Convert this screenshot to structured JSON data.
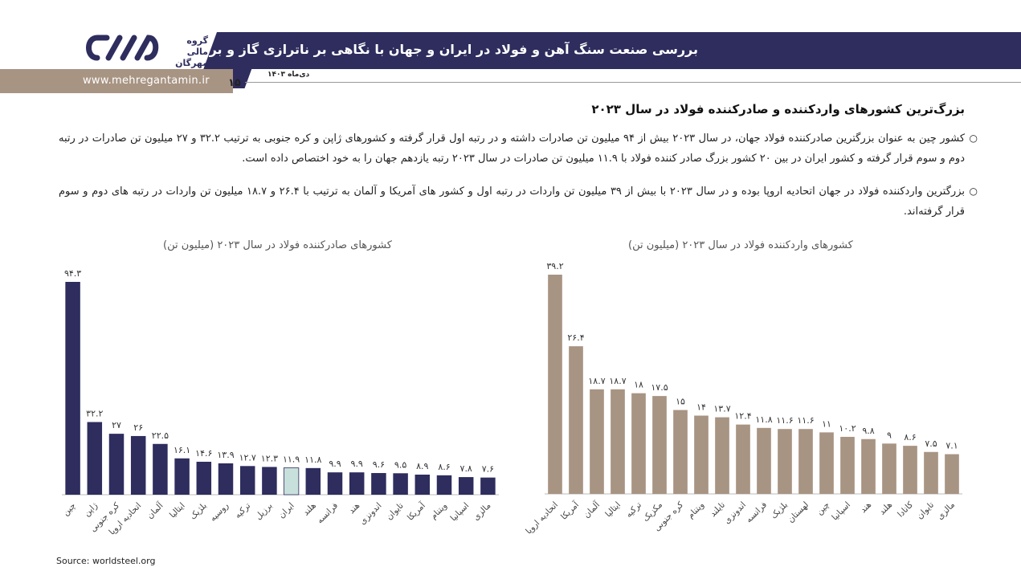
{
  "header": {
    "title": "بررسی صنعت سنگ آهن و فولاد در ایران و جهان با نگاهی بر ناترازی گاز و برق در صنعت فولاد",
    "date": "دی‌ماه ۱۴۰۳",
    "page_number": "۱۵",
    "website": "www.mehregantamin.ir",
    "logo_text": "گروه مالی مهرگان"
  },
  "section": {
    "title": "بزرگ‌ترین کشورهای واردکننده و صادرکننده فولاد در سال ۲۰۲۳",
    "paragraph1": "کشور چین به عنوان بزرگترین صادرکننده فولاد جهان، در سال ۲۰۲۳ بیش از ۹۴ میلیون تن صادرات داشته و در رتبه اول قرار گرفته و کشورهای ژاپن و کره جنوبی به ترتیب ۳۲.۲ و ۲۷ میلیون تن صادرات در رتبه دوم و سوم قرار گرفته و کشور ایران در بین ۲۰ کشور بزرگ صادر کننده فولاد با ۱۱.۹ میلیون تن صادرات در سال ۲۰۲۳ رتبه یازدهم جهان را به خود اختصاص داده است.",
    "paragraph2": "بزرگترین واردکننده فولاد در جهان اتحادیه اروپا بوده و در سال ۲۰۲۳ با بیش از ۳۹ میلیون تن واردات در رتبه اول و کشور های آمریکا و آلمان به ترتیب با ۲۶.۴ و ۱۸.۷ میلیون تن واردات در رتبه های دوم و سوم قرار گرفته‌اند.",
    "bullet": "○"
  },
  "source": "Source: worldsteel.org",
  "colors": {
    "navy": "#2e2d5e",
    "brown": "#a89483",
    "iran_highlight": "#c8e0dc",
    "import_bar": "#a89483"
  },
  "chart_data": [
    {
      "type": "bar",
      "title": "کشورهای صادرکننده فولاد در سال ۲۰۲۳ (میلیون تن)",
      "categories": [
        "چین",
        "ژاپن",
        "کره جنوبی",
        "اتحادیه اروپا",
        "آلمان",
        "ایتالیا",
        "بلژیک",
        "روسیه",
        "ترکیه",
        "برزیل",
        "ایران",
        "هلند",
        "فرانسه",
        "هند",
        "اندونزی",
        "تایوان",
        "آمریکا",
        "ویتنام",
        "اسپانیا",
        "مالزی"
      ],
      "value_labels": [
        "۹۴.۳",
        "۳۲.۲",
        "۲۷",
        "۲۶",
        "۲۲.۵",
        "۱۶.۱",
        "۱۴.۶",
        "۱۳.۹",
        "۱۲.۷",
        "۱۲.۳",
        "۱۱.۹",
        "۱۱.۸",
        "۹.۹",
        "۹.۹",
        "۹.۶",
        "۹.۵",
        "۸.۹",
        "۸.۶",
        "۷.۸",
        "۷.۶"
      ],
      "values": [
        94.3,
        32.2,
        27,
        26,
        22.5,
        16.1,
        14.6,
        13.9,
        12.7,
        12.3,
        11.9,
        11.8,
        9.9,
        9.9,
        9.6,
        9.5,
        8.9,
        8.6,
        7.8,
        7.6
      ],
      "highlight_index": 10
    },
    {
      "type": "bar",
      "title": "کشورهای واردکننده فولاد در سال ۲۰۲۳ (میلیون تن)",
      "categories": [
        "اتحادیه اروپا",
        "آمریکا",
        "آلمان",
        "ایتالیا",
        "ترکیه",
        "مکزیک",
        "کره جنوبی",
        "ویتنام",
        "تایلند",
        "اندونزی",
        "فرانسه",
        "بلژیک",
        "لهستان",
        "چین",
        "اسپانیا",
        "هند",
        "هلند",
        "کانادا",
        "تایوان",
        "مالزی"
      ],
      "value_labels": [
        "۳۹.۲",
        "۲۶.۴",
        "۱۸.۷",
        "۱۸.۷",
        "۱۸",
        "۱۷.۵",
        "۱۵",
        "۱۴",
        "۱۳.۷",
        "۱۲.۴",
        "۱۱.۸",
        "۱۱.۶",
        "۱۱.۶",
        "۱۱",
        "۱۰.۲",
        "۹.۸",
        "۹",
        "۸.۶",
        "۷.۵",
        "۷.۱"
      ],
      "values": [
        39.2,
        26.4,
        18.7,
        18.7,
        18,
        17.5,
        15,
        14,
        13.7,
        12.4,
        11.8,
        11.6,
        11.6,
        11,
        10.2,
        9.8,
        9,
        8.6,
        7.5,
        7.1
      ]
    }
  ]
}
